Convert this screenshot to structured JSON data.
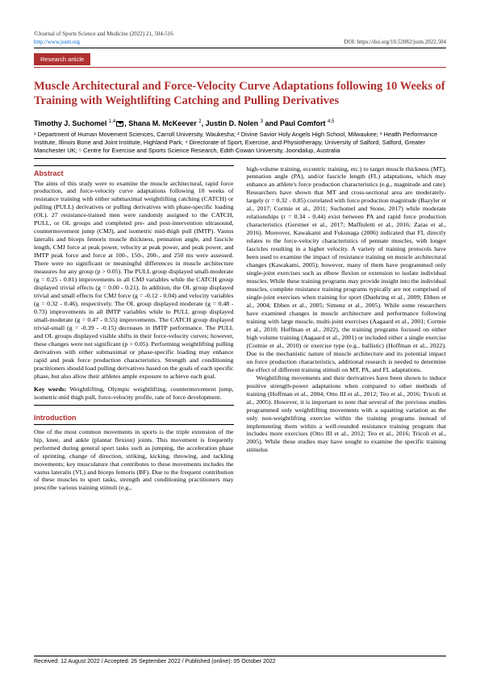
{
  "journal": {
    "citation": "©Journal of Sports Science and Medicine (2022) 21, 504-516",
    "url": "http://www.jssm.org",
    "doi": "DOI: https://doi.org/10.52082/jssm.2022.504"
  },
  "badge": "Research article",
  "title": "Muscle Architectural and Force-Velocity Curve Adaptations following 10 Weeks of Training with Weightlifting Catching and Pulling Derivatives",
  "authors_html": "Timothy J. Suchomel <sup>1,4</sup>✉, Shana M. McKeever <sup>2</sup>, Justin D. Nolen <sup>3</sup> and Paul Comfort <sup>4,5</sup>",
  "affiliations": "¹ Department of Human Movement Sciences, Carroll University, Waukesha; ² Divine Savior Holy Angels High School, Milwaukee; ³ Health Performance Institute, Illinois Bone and Joint Institute, Highland Park; ⁴ Directorate of Sport, Exercise, and Physiotherapy, University of Salford, Salford, Greater Manchester UK; ⁵ Centre for Exercise and Sports Science Research, Edith Cowan University, Joondalup, Australia",
  "abstract": "The aims of this study were to examine the muscle architectural, rapid force production, and force-velocity curve adaptations following 10 weeks of resistance training with either submaximal weightlifting catching (CATCH) or pulling (PULL) derivatives or pulling derivatives with phase-specific loading (OL). 27 resistance-trained men were randomly assigned to the CATCH, PULL, or OL groups and completed pre- and post-intervention ultrasound, countermovement jump (CMJ), and isometric mid-thigh pull (IMTP). Vastus lateralis and biceps femoris muscle thickness, pennation angle, and fascicle length, CMJ force at peak power, velocity at peak power, and peak power, and IMTP peak force and force at 100-, 150-, 200-, and 250 ms were assessed. There were no significant or meaningful differences in muscle architecture measures for any group (p > 0.05). The PULL group displayed small-moderate (g = 0.25 - 0.81) improvements in all CMJ variables while the CATCH group displayed trivial effects (g = 0.00 - 0.21). In addition, the OL group displayed trivial and small effects for CMJ force (g = -0.12 - 0.04) and velocity variables (g = 0.32 - 0.46), respectively. The OL group displayed moderate (g = 0.48 - 0.73) improvements in all IMTP variables while to PULL group displayed small-moderate (g = 0.47 - 0.55) improvements. The CATCH group displayed trivial-small (g = -0.39 - -0.15) decreases in IMTP performance. The PULL and OL groups displayed visible shifts in their force-velocity curves; however, these changes were not significant (p > 0.05). Performing weightlifting pulling derivatives with either submaximal or phase-specific loading may enhance rapid and peak force production characteristics. Strength and conditioning practitioners should load pulling derivatives based on the goals of each specific phase, but also allow their athletes ample exposure to achieve each goal.",
  "keywords_label": "Key words:",
  "keywords": "Weightlifting, Olympic weightlifting, countermovement jump, isometric-mid thigh pull, force-velocity profile, rate of force development.",
  "intro_head": "Introduction",
  "intro_p1": "One of the most common movements in sports is the triple extension of the hip, knee, and ankle (plantar flexion) joints. This movement is frequently performed during general sport tasks such as jumping, the acceleration phase of sprinting, change of direction, striking, kicking, throwing, and tackling movements; key musculature that contributes to these movements includes the vastus lateralis (VL) and biceps femoris (BF). Due to the frequent contribution of these muscles to sport tasks, strength and conditioning practitioners may prescribe various training stimuli (e.g.,",
  "col2_p1": "high-volume training, eccentric training, etc.) to target muscle thickness (MT), pennation angle (PA), and/or fascicle length (FL) adaptations, which may enhance an athlete's force production characteristics (e.g., magnitude and rate). Researchers have shown that MT and cross-sectional area are moderately-largely (r = 0.32 - 0.85) correlated with force production magnitude (Bazyler et al., 2017; Cormie et al., 2011; Suchomel and Stone, 2017) while moderate relationships (r = 0.34 - 0.44) exist between PA and rapid force production characteristics (Gerstner et al., 2017; Maffiuletti et al., 2016; Zaras et al., 2016). Moreover, Kawakami and Fukunaga (2006) indicated that FL directly relates to the force-velocity characteristics of pennate muscles, with longer fascicles resulting in a higher velocity. A variety of training protocols have been used to examine the impact of resistance training on muscle architectural changes (Kawakami, 2005); however, many of them have programmed only single-joint exercises such as elbow flexion or extension to isolate individual muscles. While these training programs may provide insight into the individual muscles, complete resistance training programs typically are not comprised of single-joint exercises when training for sport (Duehring et al., 2009; Ebben et al., 2004; Ebben et al., 2005; Simenz et al., 2005). While some researchers have examined changes in muscle architecture and performance following training with large muscle, multi-joint exercises (Aagaard et al., 2001; Cormie et al., 2010; Hoffman et al., 2022), the training programs focused on either high volume training (Aagaard et al., 2001) or included either a single exercise (Cormie et al., 2010) or exercise type (e.g., ballistic) (Hoffman et al., 2022). Due to the mechanistic nature of muscle architecture and its potential impact on force production characteristics, additional research is needed to determine the effect of different training stimuli on MT, PA, and FL adaptations.",
  "col2_p2": "Weightlifting movements and their derivatives have been shown to induce positive strength-power adaptations when compared to other methods of training (Hoffman et al., 2004; Otto III et al., 2012; Teo et al., 2016; Tricoli et al., 2005). However, it is important to note that several of the previous studies programmed only weightlifting movements with a squatting variation as the only non-weightlifting exercise within the training programs instead of implementing them within a well-rounded resistance training program that includes more exercises (Otto III et al., 2012; Teo et al., 2016; Tricoli et al., 2005). While these studies may have sought to examine the specific training stimulus",
  "footer": "Received: 12 August 2022 / Accepted: 26 September 2022 / Published (online): 05 October 2022",
  "colors": {
    "accent": "#b03030",
    "link": "#0066cc",
    "text": "#000000",
    "bg": "#ffffff"
  }
}
